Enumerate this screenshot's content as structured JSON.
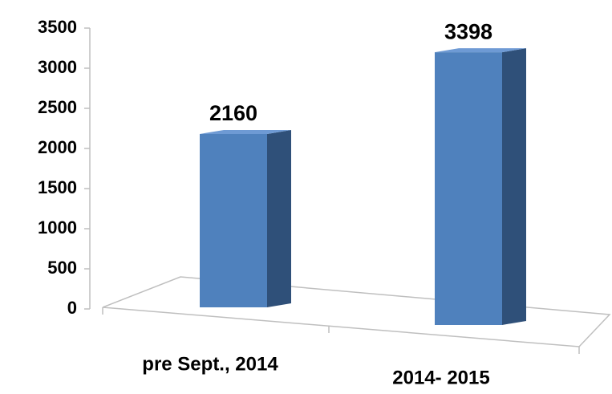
{
  "chart_data": {
    "type": "bar3d",
    "categories": [
      "pre Sept., 2014",
      "2014- 2015"
    ],
    "values": [
      2160,
      3398
    ],
    "color": "#4f81bd",
    "ylim": [
      0,
      3500
    ],
    "yticks": [
      0,
      500,
      1000,
      1500,
      2000,
      2500,
      3000,
      3500
    ]
  }
}
